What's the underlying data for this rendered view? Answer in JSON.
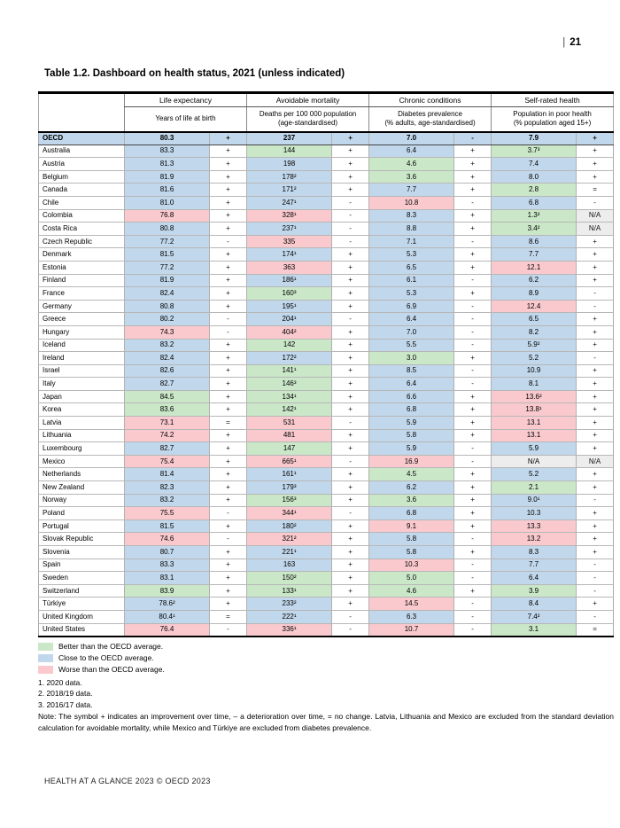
{
  "page_header": {
    "separator": "|",
    "number": "21"
  },
  "title": "Table 1.2. Dashboard on health status, 2021 (unless indicated)",
  "colors": {
    "better": "#cae7c8",
    "close": "#c1d7eb",
    "worse": "#f9c9ce",
    "na": "#ededed"
  },
  "table": {
    "columns": [
      {
        "group": "Life expectancy",
        "sub": "Years of life at birth"
      },
      {
        "group": "Avoidable mortality",
        "sub": "Deaths per 100 000 population\n(age-standardised)"
      },
      {
        "group": "Chronic conditions",
        "sub": "Diabetes prevalence\n(% adults, age-standardised)"
      },
      {
        "group": "Self-rated health",
        "sub": "Population in poor health\n(% population aged 15+)"
      }
    ],
    "rows": [
      {
        "country": "OECD",
        "bold": true,
        "cells": [
          [
            "80.3",
            "b",
            "+"
          ],
          [
            "237",
            "b",
            "+"
          ],
          [
            "7.0",
            "b",
            "-"
          ],
          [
            "7.9",
            "b",
            "+"
          ]
        ]
      },
      {
        "country": "Australia",
        "cells": [
          [
            "83.3",
            "b",
            "+"
          ],
          [
            "144",
            "g",
            "+"
          ],
          [
            "6.4",
            "b",
            "+"
          ],
          [
            "3.7³",
            "g",
            "+"
          ]
        ]
      },
      {
        "country": "Austria",
        "cells": [
          [
            "81.3",
            "b",
            "+"
          ],
          [
            "198",
            "b",
            "+"
          ],
          [
            "4.6",
            "g",
            "+"
          ],
          [
            "7.4",
            "b",
            "+"
          ]
        ]
      },
      {
        "country": "Belgium",
        "cells": [
          [
            "81.9",
            "b",
            "+"
          ],
          [
            "178²",
            "b",
            "+"
          ],
          [
            "3.6",
            "g",
            "+"
          ],
          [
            "8.0",
            "b",
            "+"
          ]
        ]
      },
      {
        "country": "Canada",
        "cells": [
          [
            "81.6",
            "b",
            "+"
          ],
          [
            "171²",
            "b",
            "+"
          ],
          [
            "7.7",
            "b",
            "+"
          ],
          [
            "2.8",
            "g",
            "="
          ]
        ]
      },
      {
        "country": "Chile",
        "cells": [
          [
            "81.0",
            "b",
            "+"
          ],
          [
            "247¹",
            "b",
            "-"
          ],
          [
            "10.8",
            "p",
            "-"
          ],
          [
            "6.8",
            "b",
            "-"
          ]
        ]
      },
      {
        "country": "Colombia",
        "cells": [
          [
            "76.8",
            "p",
            "+"
          ],
          [
            "328¹",
            "p",
            "-"
          ],
          [
            "8.3",
            "b",
            "+"
          ],
          [
            "1.3²",
            "g",
            "N/A"
          ]
        ]
      },
      {
        "country": "Costa Rica",
        "cells": [
          [
            "80.8",
            "b",
            "+"
          ],
          [
            "237¹",
            "b",
            "-"
          ],
          [
            "8.8",
            "b",
            "+"
          ],
          [
            "3.4²",
            "g",
            "N/A"
          ]
        ]
      },
      {
        "country": "Czech Republic",
        "cells": [
          [
            "77.2",
            "b",
            "-"
          ],
          [
            "335",
            "p",
            "-"
          ],
          [
            "7.1",
            "b",
            "-"
          ],
          [
            "8.6",
            "b",
            "+"
          ]
        ]
      },
      {
        "country": "Denmark",
        "cells": [
          [
            "81.5",
            "b",
            "+"
          ],
          [
            "174¹",
            "b",
            "+"
          ],
          [
            "5.3",
            "b",
            "+"
          ],
          [
            "7.7",
            "b",
            "+"
          ]
        ]
      },
      {
        "country": "Estonia",
        "cells": [
          [
            "77.2",
            "b",
            "+"
          ],
          [
            "363",
            "p",
            "+"
          ],
          [
            "6.5",
            "b",
            "+"
          ],
          [
            "12.1",
            "p",
            "+"
          ]
        ]
      },
      {
        "country": "Finland",
        "cells": [
          [
            "81.9",
            "b",
            "+"
          ],
          [
            "186¹",
            "b",
            "+"
          ],
          [
            "6.1",
            "b",
            "-"
          ],
          [
            "6.2",
            "b",
            "+"
          ]
        ]
      },
      {
        "country": "France",
        "cells": [
          [
            "82.4",
            "b",
            "+"
          ],
          [
            "160³",
            "g",
            "+"
          ],
          [
            "5.3",
            "b",
            "+"
          ],
          [
            "8.9",
            "b",
            "-"
          ]
        ]
      },
      {
        "country": "Germany",
        "cells": [
          [
            "80.8",
            "b",
            "+"
          ],
          [
            "195¹",
            "b",
            "+"
          ],
          [
            "6.9",
            "b",
            "-"
          ],
          [
            "12.4",
            "p",
            "-"
          ]
        ]
      },
      {
        "country": "Greece",
        "cells": [
          [
            "80.2",
            "b",
            "-"
          ],
          [
            "204¹",
            "b",
            "-"
          ],
          [
            "6.4",
            "b",
            "-"
          ],
          [
            "6.5",
            "b",
            "+"
          ]
        ]
      },
      {
        "country": "Hungary",
        "cells": [
          [
            "74.3",
            "p",
            "-"
          ],
          [
            "404²",
            "p",
            "+"
          ],
          [
            "7.0",
            "b",
            "-"
          ],
          [
            "8.2",
            "b",
            "+"
          ]
        ]
      },
      {
        "country": "Iceland",
        "cells": [
          [
            "83.2",
            "b",
            "+"
          ],
          [
            "142",
            "g",
            "+"
          ],
          [
            "5.5",
            "b",
            "-"
          ],
          [
            "5.9²",
            "b",
            "+"
          ]
        ]
      },
      {
        "country": "Ireland",
        "cells": [
          [
            "82.4",
            "b",
            "+"
          ],
          [
            "172²",
            "b",
            "+"
          ],
          [
            "3.0",
            "g",
            "+"
          ],
          [
            "5.2",
            "b",
            "-"
          ]
        ]
      },
      {
        "country": "Israel",
        "cells": [
          [
            "82.6",
            "b",
            "+"
          ],
          [
            "141¹",
            "g",
            "+"
          ],
          [
            "8.5",
            "b",
            "-"
          ],
          [
            "10.9",
            "b",
            "+"
          ]
        ]
      },
      {
        "country": "Italy",
        "cells": [
          [
            "82.7",
            "b",
            "+"
          ],
          [
            "146³",
            "g",
            "+"
          ],
          [
            "6.4",
            "b",
            "-"
          ],
          [
            "8.1",
            "b",
            "+"
          ]
        ]
      },
      {
        "country": "Japan",
        "cells": [
          [
            "84.5",
            "g",
            "+"
          ],
          [
            "134¹",
            "g",
            "+"
          ],
          [
            "6.6",
            "b",
            "+"
          ],
          [
            "13.6²",
            "p",
            "+"
          ]
        ]
      },
      {
        "country": "Korea",
        "cells": [
          [
            "83.6",
            "g",
            "+"
          ],
          [
            "142¹",
            "g",
            "+"
          ],
          [
            "6.8",
            "b",
            "+"
          ],
          [
            "13.8¹",
            "p",
            "+"
          ]
        ]
      },
      {
        "country": "Latvia",
        "cells": [
          [
            "73.1",
            "p",
            "="
          ],
          [
            "531",
            "p",
            "-"
          ],
          [
            "5.9",
            "b",
            "+"
          ],
          [
            "13.1",
            "p",
            "+"
          ]
        ]
      },
      {
        "country": "Lithuania",
        "cells": [
          [
            "74.2",
            "p",
            "+"
          ],
          [
            "481",
            "p",
            "+"
          ],
          [
            "5.8",
            "b",
            "+"
          ],
          [
            "13.1",
            "p",
            "+"
          ]
        ]
      },
      {
        "country": "Luxembourg",
        "cells": [
          [
            "82.7",
            "b",
            "+"
          ],
          [
            "147",
            "g",
            "+"
          ],
          [
            "5.9",
            "b",
            "-"
          ],
          [
            "5.9",
            "b",
            "+"
          ]
        ]
      },
      {
        "country": "Mexico",
        "cells": [
          [
            "75.4",
            "p",
            "+"
          ],
          [
            "665¹",
            "p",
            "-"
          ],
          [
            "16.9",
            "p",
            "-"
          ],
          [
            "N/A",
            "n",
            "N/A"
          ]
        ]
      },
      {
        "country": "Netherlands",
        "cells": [
          [
            "81.4",
            "b",
            "+"
          ],
          [
            "161¹",
            "b",
            "+"
          ],
          [
            "4.5",
            "g",
            "+"
          ],
          [
            "5.2",
            "b",
            "+"
          ]
        ]
      },
      {
        "country": "New Zealand",
        "cells": [
          [
            "82.3",
            "b",
            "+"
          ],
          [
            "179³",
            "b",
            "+"
          ],
          [
            "6.2",
            "b",
            "+"
          ],
          [
            "2.1",
            "g",
            "+"
          ]
        ]
      },
      {
        "country": "Norway",
        "cells": [
          [
            "83.2",
            "b",
            "+"
          ],
          [
            "156³",
            "g",
            "+"
          ],
          [
            "3.6",
            "g",
            "+"
          ],
          [
            "9.0¹",
            "b",
            "-"
          ]
        ]
      },
      {
        "country": "Poland",
        "cells": [
          [
            "75.5",
            "p",
            "-"
          ],
          [
            "344¹",
            "p",
            "-"
          ],
          [
            "6.8",
            "b",
            "+"
          ],
          [
            "10.3",
            "b",
            "+"
          ]
        ]
      },
      {
        "country": "Portugal",
        "cells": [
          [
            "81.5",
            "b",
            "+"
          ],
          [
            "180²",
            "b",
            "+"
          ],
          [
            "9.1",
            "p",
            "+"
          ],
          [
            "13.3",
            "p",
            "+"
          ]
        ]
      },
      {
        "country": "Slovak Republic",
        "cells": [
          [
            "74.6",
            "p",
            "-"
          ],
          [
            "321²",
            "p",
            "+"
          ],
          [
            "5.8",
            "b",
            "-"
          ],
          [
            "13.2",
            "p",
            "+"
          ]
        ]
      },
      {
        "country": "Slovenia",
        "cells": [
          [
            "80.7",
            "b",
            "+"
          ],
          [
            "221¹",
            "b",
            "+"
          ],
          [
            "5.8",
            "b",
            "+"
          ],
          [
            "8.3",
            "b",
            "+"
          ]
        ]
      },
      {
        "country": "Spain",
        "cells": [
          [
            "83.3",
            "b",
            "+"
          ],
          [
            "163",
            "b",
            "+"
          ],
          [
            "10.3",
            "p",
            "-"
          ],
          [
            "7.7",
            "b",
            "-"
          ]
        ]
      },
      {
        "country": "Sweden",
        "cells": [
          [
            "83.1",
            "b",
            "+"
          ],
          [
            "150²",
            "g",
            "+"
          ],
          [
            "5.0",
            "g",
            "-"
          ],
          [
            "6.4",
            "b",
            "-"
          ]
        ]
      },
      {
        "country": "Switzerland",
        "cells": [
          [
            "83.9",
            "g",
            "+"
          ],
          [
            "133¹",
            "g",
            "+"
          ],
          [
            "4.6",
            "g",
            "+"
          ],
          [
            "3.9",
            "g",
            "-"
          ]
        ]
      },
      {
        "country": "Türkiye",
        "cells": [
          [
            "78.6²",
            "b",
            "+"
          ],
          [
            "233²",
            "b",
            "+"
          ],
          [
            "14.5",
            "p",
            "-"
          ],
          [
            "8.4",
            "b",
            "+"
          ]
        ]
      },
      {
        "country": "United Kingdom",
        "cells": [
          [
            "80.4¹",
            "b",
            "="
          ],
          [
            "222¹",
            "b",
            "-"
          ],
          [
            "6.3",
            "b",
            "-"
          ],
          [
            "7.4²",
            "b",
            "-"
          ]
        ]
      },
      {
        "country": "United States",
        "cells": [
          [
            "76.4",
            "p",
            "-"
          ],
          [
            "336¹",
            "p",
            "-"
          ],
          [
            "10.7",
            "p",
            "-"
          ],
          [
            "3.1",
            "g",
            "="
          ]
        ]
      }
    ]
  },
  "legend": [
    {
      "label": "Better than the OECD average.",
      "color_key": "better"
    },
    {
      "label": "Close to the OECD average.",
      "color_key": "close"
    },
    {
      "label": "Worse than the OECD average.",
      "color_key": "worse"
    }
  ],
  "footnotes": [
    "1. 2020 data.",
    "2. 2018/19 data.",
    "3. 2016/17 data."
  ],
  "note": "Note: The symbol + indicates an improvement over time, – a deterioration over time, = no change. Latvia, Lithuania and Mexico are excluded from the standard deviation calculation for avoidable mortality, while Mexico and Türkiye are excluded from diabetes prevalence.",
  "footer": "HEALTH AT A GLANCE 2023 © OECD 2023"
}
